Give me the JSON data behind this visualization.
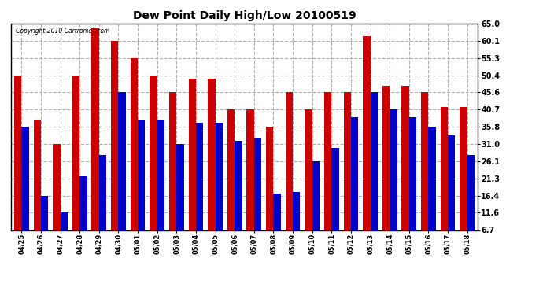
{
  "title": "Dew Point Daily High/Low 20100519",
  "copyright": "Copyright 2010 Cartronics.com",
  "dates": [
    "04/25",
    "04/26",
    "04/27",
    "04/28",
    "04/29",
    "04/30",
    "05/01",
    "05/02",
    "05/03",
    "05/04",
    "05/05",
    "05/06",
    "05/07",
    "05/08",
    "05/09",
    "05/10",
    "05/11",
    "05/12",
    "05/13",
    "05/14",
    "05/15",
    "05/16",
    "05/17",
    "05/18"
  ],
  "highs": [
    50.4,
    38.0,
    31.0,
    50.4,
    64.0,
    60.1,
    55.3,
    50.4,
    45.6,
    49.5,
    49.5,
    40.7,
    40.7,
    35.8,
    45.6,
    40.7,
    45.6,
    45.6,
    61.5,
    47.5,
    47.5,
    45.6,
    41.5,
    41.5
  ],
  "lows": [
    35.8,
    16.4,
    11.6,
    22.0,
    28.0,
    45.6,
    38.0,
    38.0,
    31.0,
    37.0,
    37.0,
    32.0,
    32.5,
    17.0,
    17.5,
    26.1,
    30.0,
    38.5,
    45.6,
    40.7,
    38.5,
    35.8,
    33.5,
    28.0
  ],
  "high_color": "#cc0000",
  "low_color": "#0000cc",
  "background_color": "#ffffff",
  "grid_color": "#b0b0b0",
  "yticks": [
    6.7,
    11.6,
    16.4,
    21.3,
    26.1,
    31.0,
    35.8,
    40.7,
    45.6,
    50.4,
    55.3,
    60.1,
    65.0
  ],
  "ymin": 6.7,
  "ymax": 65.0,
  "bar_width": 0.38
}
